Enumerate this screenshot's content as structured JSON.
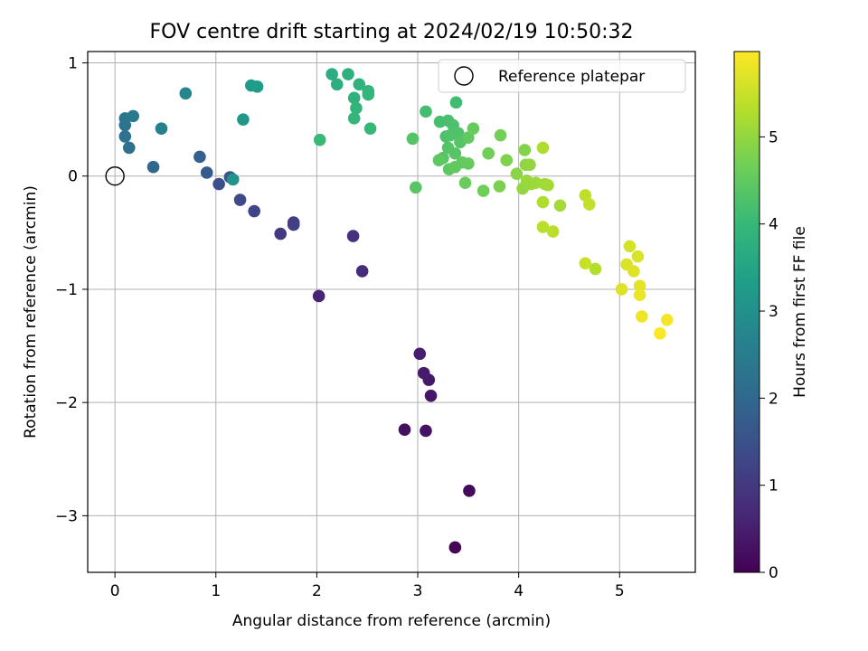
{
  "chart_data": {
    "type": "scatter",
    "title": "FOV centre drift starting at 2024/02/19 10:50:32",
    "xlabel": "Angular distance from reference (arcmin)",
    "ylabel": "Rotation from reference (arcmin)",
    "xlim": [
      -0.27,
      5.75
    ],
    "ylim": [
      -3.5,
      1.1
    ],
    "xticks": [
      0,
      1,
      2,
      3,
      4,
      5
    ],
    "yticks": [
      -3,
      -2,
      -1,
      0,
      1
    ],
    "xtick_labels": [
      "0",
      "1",
      "2",
      "3",
      "4",
      "5"
    ],
    "ytick_labels": [
      "−3",
      "−2",
      "−1",
      "0",
      "1"
    ],
    "grid": true,
    "legend": {
      "position": "top-right",
      "label": "Reference platepar"
    },
    "reference_point": {
      "x": 0,
      "y": 0
    },
    "colorbar": {
      "label": "Hours from first FF file",
      "colormap": "viridis",
      "range": [
        0,
        5.98
      ],
      "ticks": [
        0,
        1,
        2,
        3,
        4,
        5
      ],
      "tick_labels": [
        "0",
        "1",
        "2",
        "3",
        "4",
        "5"
      ]
    },
    "points": [
      {
        "x": 3.37,
        "y": -3.28,
        "h": 0.05
      },
      {
        "x": 3.51,
        "y": -2.78,
        "h": 0.15
      },
      {
        "x": 2.87,
        "y": -2.24,
        "h": 0.25
      },
      {
        "x": 3.08,
        "y": -2.25,
        "h": 0.3
      },
      {
        "x": 3.13,
        "y": -1.94,
        "h": 0.35
      },
      {
        "x": 3.11,
        "y": -1.8,
        "h": 0.4
      },
      {
        "x": 3.06,
        "y": -1.74,
        "h": 0.45
      },
      {
        "x": 3.02,
        "y": -1.57,
        "h": 0.5
      },
      {
        "x": 2.02,
        "y": -1.06,
        "h": 0.6
      },
      {
        "x": 2.45,
        "y": -0.84,
        "h": 0.75
      },
      {
        "x": 2.36,
        "y": -0.53,
        "h": 0.85
      },
      {
        "x": 1.64,
        "y": -0.51,
        "h": 1.0
      },
      {
        "x": 1.77,
        "y": -0.41,
        "h": 1.1
      },
      {
        "x": 1.77,
        "y": -0.43,
        "h": 1.15
      },
      {
        "x": 1.38,
        "y": -0.31,
        "h": 1.25
      },
      {
        "x": 1.24,
        "y": -0.21,
        "h": 1.35
      },
      {
        "x": 1.03,
        "y": -0.07,
        "h": 1.45
      },
      {
        "x": 1.14,
        "y": -0.01,
        "h": 1.6
      },
      {
        "x": 0.91,
        "y": 0.03,
        "h": 1.7
      },
      {
        "x": 0.84,
        "y": 0.17,
        "h": 1.8
      },
      {
        "x": 0.38,
        "y": 0.08,
        "h": 2.0
      },
      {
        "x": 0.14,
        "y": 0.25,
        "h": 2.2
      },
      {
        "x": 0.1,
        "y": 0.35,
        "h": 2.25
      },
      {
        "x": 0.1,
        "y": 0.45,
        "h": 2.3
      },
      {
        "x": 0.1,
        "y": 0.51,
        "h": 2.35
      },
      {
        "x": 0.18,
        "y": 0.53,
        "h": 2.45
      },
      {
        "x": 0.46,
        "y": 0.42,
        "h": 2.6
      },
      {
        "x": 0.7,
        "y": 0.73,
        "h": 2.75
      },
      {
        "x": 1.17,
        "y": -0.03,
        "h": 3.1
      },
      {
        "x": 1.27,
        "y": 0.5,
        "h": 3.15
      },
      {
        "x": 1.35,
        "y": 0.8,
        "h": 3.25
      },
      {
        "x": 1.41,
        "y": 0.79,
        "h": 3.3
      },
      {
        "x": 2.15,
        "y": 0.9,
        "h": 3.7
      },
      {
        "x": 2.2,
        "y": 0.81,
        "h": 3.75
      },
      {
        "x": 2.31,
        "y": 0.9,
        "h": 3.8
      },
      {
        "x": 2.42,
        "y": 0.81,
        "h": 3.85
      },
      {
        "x": 2.51,
        "y": 0.75,
        "h": 3.9
      },
      {
        "x": 2.51,
        "y": 0.72,
        "h": 3.95
      },
      {
        "x": 2.37,
        "y": 0.69,
        "h": 3.85
      },
      {
        "x": 2.39,
        "y": 0.6,
        "h": 3.9
      },
      {
        "x": 2.37,
        "y": 0.51,
        "h": 3.95
      },
      {
        "x": 2.53,
        "y": 0.42,
        "h": 4.0
      },
      {
        "x": 2.03,
        "y": 0.32,
        "h": 4.05
      },
      {
        "x": 3.38,
        "y": 0.65,
        "h": 4.1
      },
      {
        "x": 3.08,
        "y": 0.57,
        "h": 4.15
      },
      {
        "x": 3.22,
        "y": 0.48,
        "h": 4.2
      },
      {
        "x": 3.3,
        "y": 0.49,
        "h": 4.22
      },
      {
        "x": 3.35,
        "y": 0.45,
        "h": 4.25
      },
      {
        "x": 3.28,
        "y": 0.35,
        "h": 4.25
      },
      {
        "x": 3.32,
        "y": 0.36,
        "h": 4.3
      },
      {
        "x": 3.4,
        "y": 0.38,
        "h": 4.3
      },
      {
        "x": 3.3,
        "y": 0.25,
        "h": 4.35
      },
      {
        "x": 3.42,
        "y": 0.3,
        "h": 4.35
      },
      {
        "x": 3.37,
        "y": 0.2,
        "h": 4.4
      },
      {
        "x": 3.25,
        "y": 0.16,
        "h": 4.4
      },
      {
        "x": 3.21,
        "y": 0.14,
        "h": 4.45
      },
      {
        "x": 3.31,
        "y": 0.06,
        "h": 4.45
      },
      {
        "x": 3.37,
        "y": 0.08,
        "h": 4.5
      },
      {
        "x": 3.44,
        "y": 0.12,
        "h": 4.5
      },
      {
        "x": 3.5,
        "y": 0.11,
        "h": 4.55
      },
      {
        "x": 3.5,
        "y": 0.34,
        "h": 4.5
      },
      {
        "x": 3.55,
        "y": 0.42,
        "h": 4.55
      },
      {
        "x": 2.95,
        "y": 0.33,
        "h": 4.35
      },
      {
        "x": 2.98,
        "y": -0.1,
        "h": 4.4
      },
      {
        "x": 3.47,
        "y": -0.06,
        "h": 4.6
      },
      {
        "x": 3.65,
        "y": -0.13,
        "h": 4.65
      },
      {
        "x": 3.7,
        "y": 0.2,
        "h": 4.65
      },
      {
        "x": 3.82,
        "y": 0.36,
        "h": 4.7
      },
      {
        "x": 3.81,
        "y": -0.09,
        "h": 4.75
      },
      {
        "x": 3.88,
        "y": 0.14,
        "h": 4.8
      },
      {
        "x": 3.98,
        "y": 0.02,
        "h": 4.9
      },
      {
        "x": 4.06,
        "y": 0.23,
        "h": 4.85
      },
      {
        "x": 4.07,
        "y": 0.1,
        "h": 4.95
      },
      {
        "x": 4.11,
        "y": 0.1,
        "h": 5.0
      },
      {
        "x": 4.04,
        "y": -0.11,
        "h": 5.0
      },
      {
        "x": 4.08,
        "y": -0.04,
        "h": 5.05
      },
      {
        "x": 4.12,
        "y": -0.07,
        "h": 5.05
      },
      {
        "x": 4.17,
        "y": -0.06,
        "h": 5.1
      },
      {
        "x": 4.26,
        "y": -0.07,
        "h": 5.1
      },
      {
        "x": 4.29,
        "y": -0.08,
        "h": 5.15
      },
      {
        "x": 4.24,
        "y": 0.25,
        "h": 5.25
      },
      {
        "x": 4.24,
        "y": -0.23,
        "h": 5.25
      },
      {
        "x": 4.41,
        "y": -0.26,
        "h": 5.15
      },
      {
        "x": 4.24,
        "y": -0.45,
        "h": 5.35
      },
      {
        "x": 4.34,
        "y": -0.49,
        "h": 5.35
      },
      {
        "x": 4.66,
        "y": -0.17,
        "h": 5.4
      },
      {
        "x": 4.7,
        "y": -0.25,
        "h": 5.45
      },
      {
        "x": 4.66,
        "y": -0.77,
        "h": 5.5
      },
      {
        "x": 4.76,
        "y": -0.82,
        "h": 5.3
      },
      {
        "x": 5.1,
        "y": -0.62,
        "h": 5.6
      },
      {
        "x": 5.18,
        "y": -0.71,
        "h": 5.65
      },
      {
        "x": 5.07,
        "y": -0.78,
        "h": 5.65
      },
      {
        "x": 5.14,
        "y": -0.84,
        "h": 5.7
      },
      {
        "x": 5.02,
        "y": -1.0,
        "h": 5.7
      },
      {
        "x": 5.2,
        "y": -0.97,
        "h": 5.75
      },
      {
        "x": 5.2,
        "y": -1.05,
        "h": 5.8
      },
      {
        "x": 5.22,
        "y": -1.24,
        "h": 5.85
      },
      {
        "x": 5.47,
        "y": -1.27,
        "h": 5.9
      },
      {
        "x": 5.4,
        "y": -1.39,
        "h": 5.95
      }
    ]
  }
}
